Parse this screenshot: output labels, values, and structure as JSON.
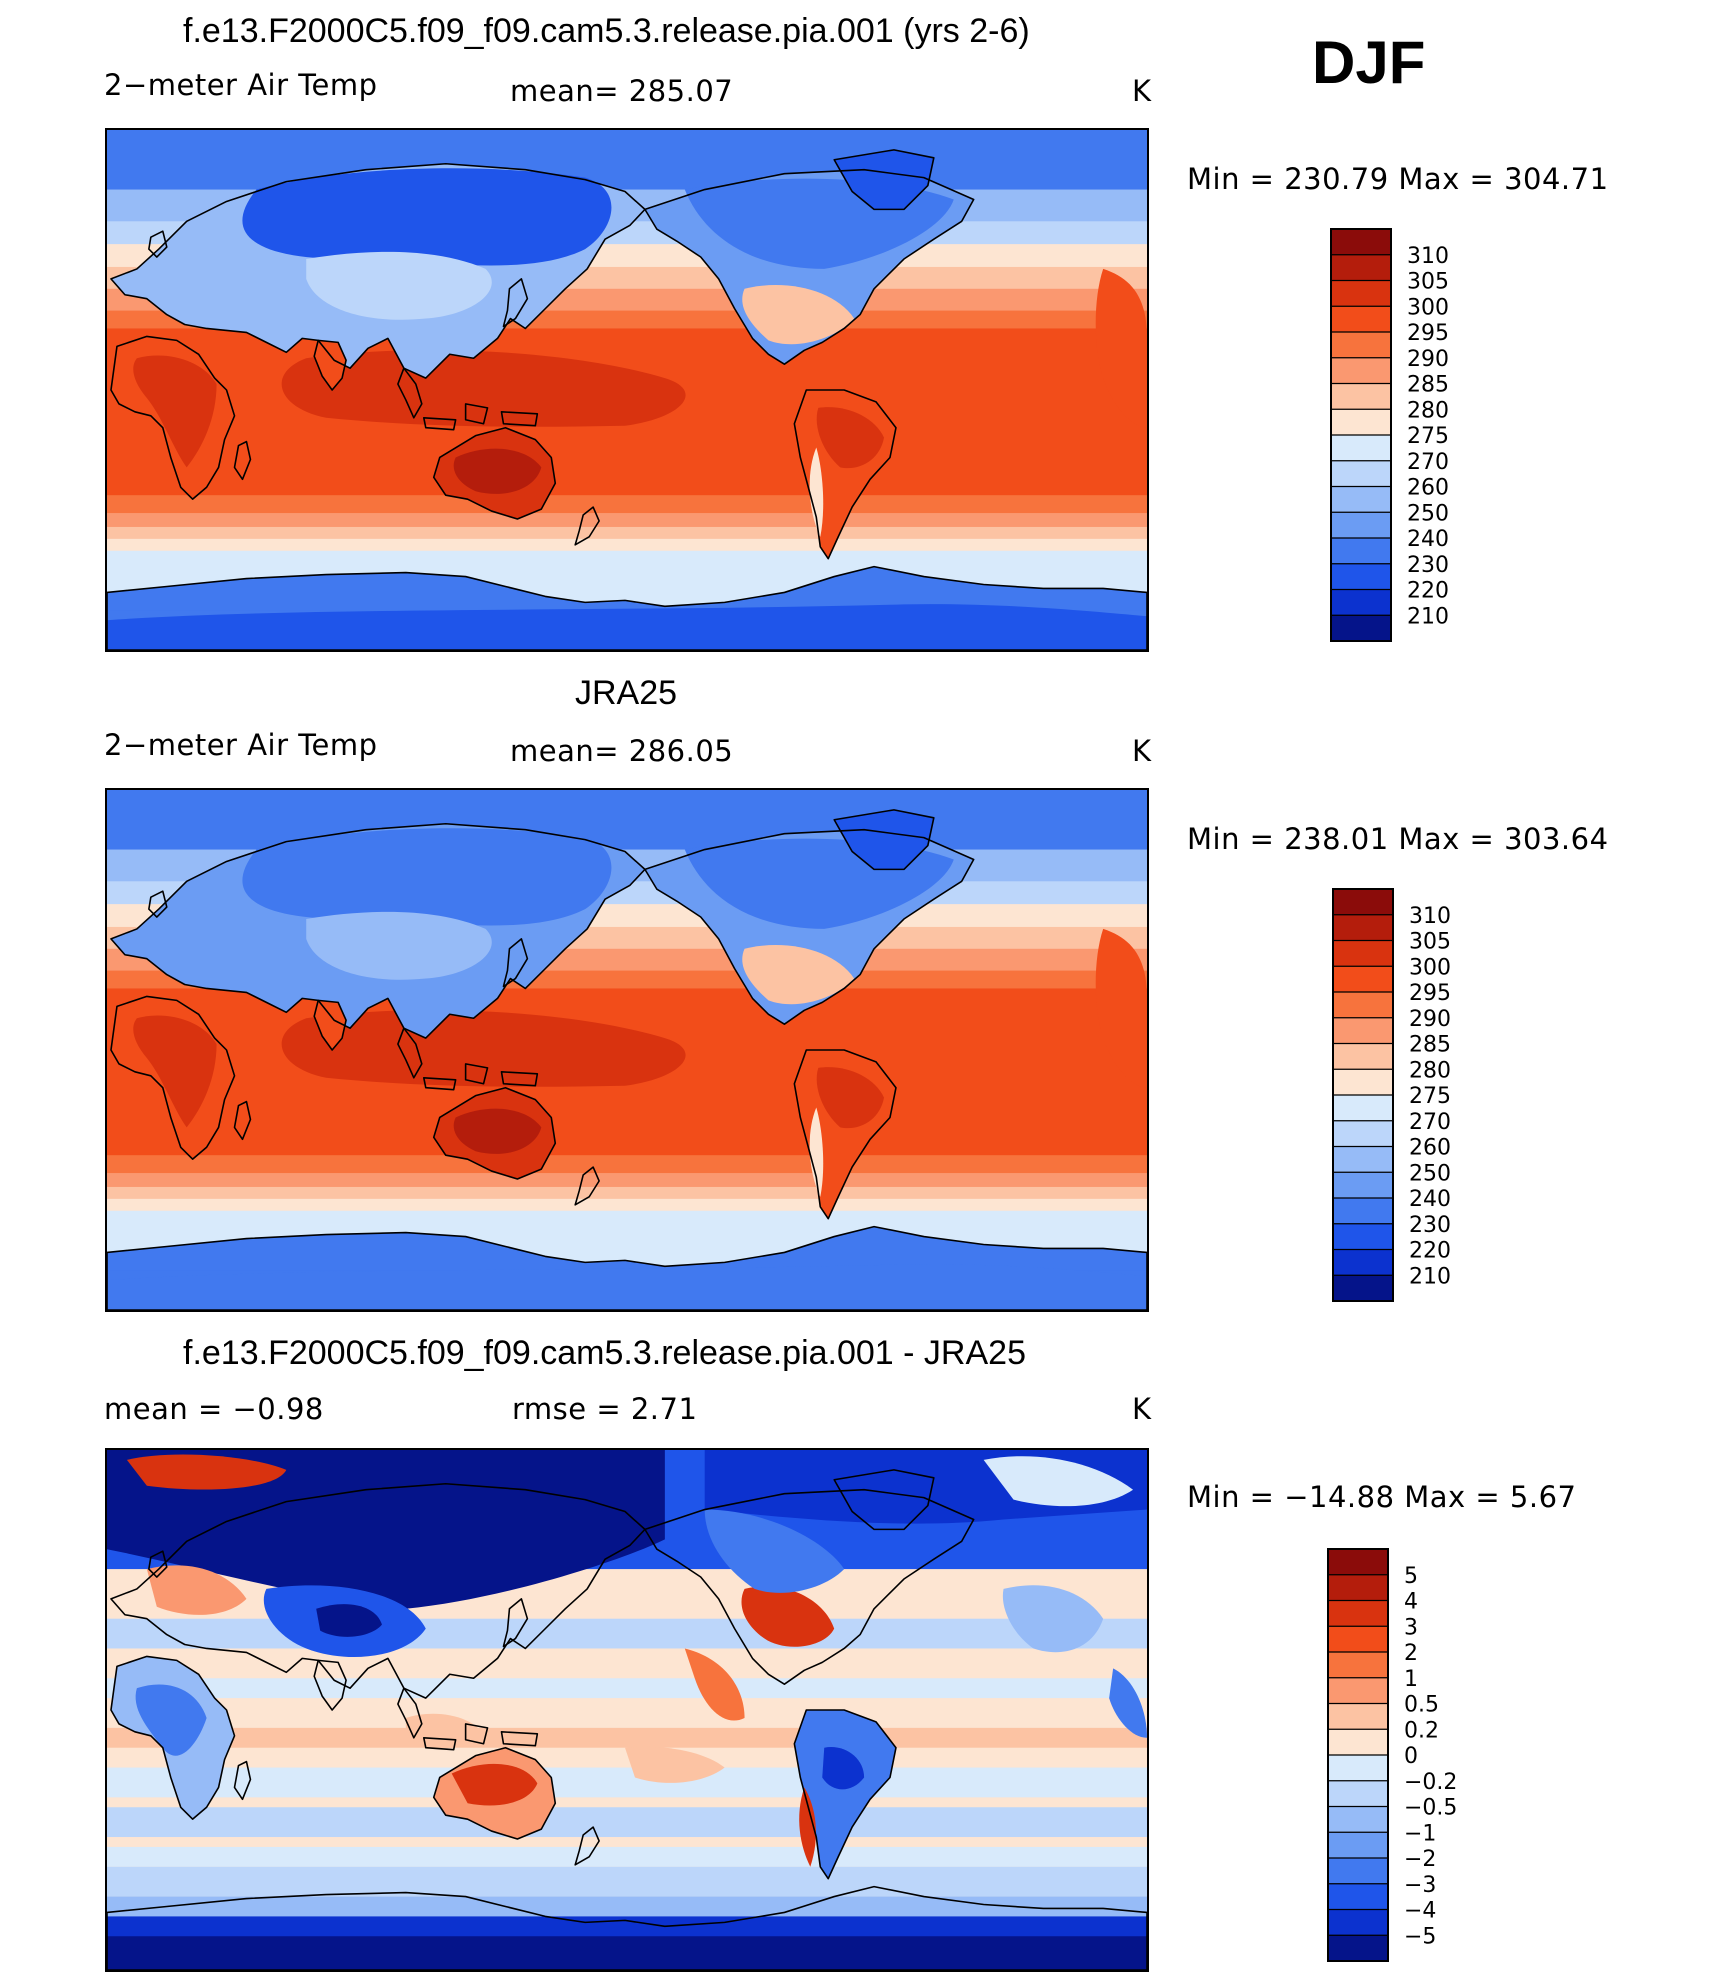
{
  "season": "DJF",
  "panels": [
    {
      "title": "f.e13.F2000C5.f09_f09.cam5.3.release.pia.001 (yrs 2-6)",
      "left_label": "2−meter Air Temp",
      "center_label": "mean=  285.07",
      "unit": "K",
      "minmax": "Min  =  230.79  Max  =  304.71",
      "kind": "model"
    },
    {
      "title": "JRA25",
      "left_label": "2−meter Air Temp",
      "center_label": "mean=  286.05",
      "unit": "K",
      "minmax": "Min  =  238.01  Max  =  303.64",
      "kind": "obs"
    },
    {
      "title": "f.e13.F2000C5.f09_f09.cam5.3.release.pia.001 - JRA25",
      "left_label": "mean  =    −0.98",
      "center_label": "rmse  =     2.71",
      "unit": "K",
      "minmax": "Min  =  −14.88  Max  =      5.67",
      "kind": "diff"
    }
  ],
  "colorbars": {
    "abs": {
      "labels": [
        "310",
        "305",
        "300",
        "295",
        "290",
        "285",
        "280",
        "275",
        "270",
        "260",
        "250",
        "240",
        "230",
        "220",
        "210"
      ],
      "colors": [
        "#8b0c0a",
        "#b41d0c",
        "#d9330f",
        "#f24d1a",
        "#f7733d",
        "#fa9870",
        "#fcc3a3",
        "#fde5d2",
        "#d8eafb",
        "#bcd6fa",
        "#96bbf7",
        "#6b9cf3",
        "#4179ef",
        "#1f55ea",
        "#0c32cf",
        "#05148a"
      ]
    },
    "diff": {
      "labels": [
        "5",
        "4",
        "3",
        "2",
        "1",
        "0.5",
        "0.2",
        "0",
        "−0.2",
        "−0.5",
        "−1",
        "−2",
        "−3",
        "−4",
        "−5"
      ],
      "colors": [
        "#8b0c0a",
        "#b41d0c",
        "#d9330f",
        "#f24d1a",
        "#f7733d",
        "#fa9870",
        "#fcc3a3",
        "#fde5d2",
        "#d8eafb",
        "#bcd6fa",
        "#96bbf7",
        "#6b9cf3",
        "#4179ef",
        "#1f55ea",
        "#0c32cf",
        "#05148a"
      ]
    }
  }
}
